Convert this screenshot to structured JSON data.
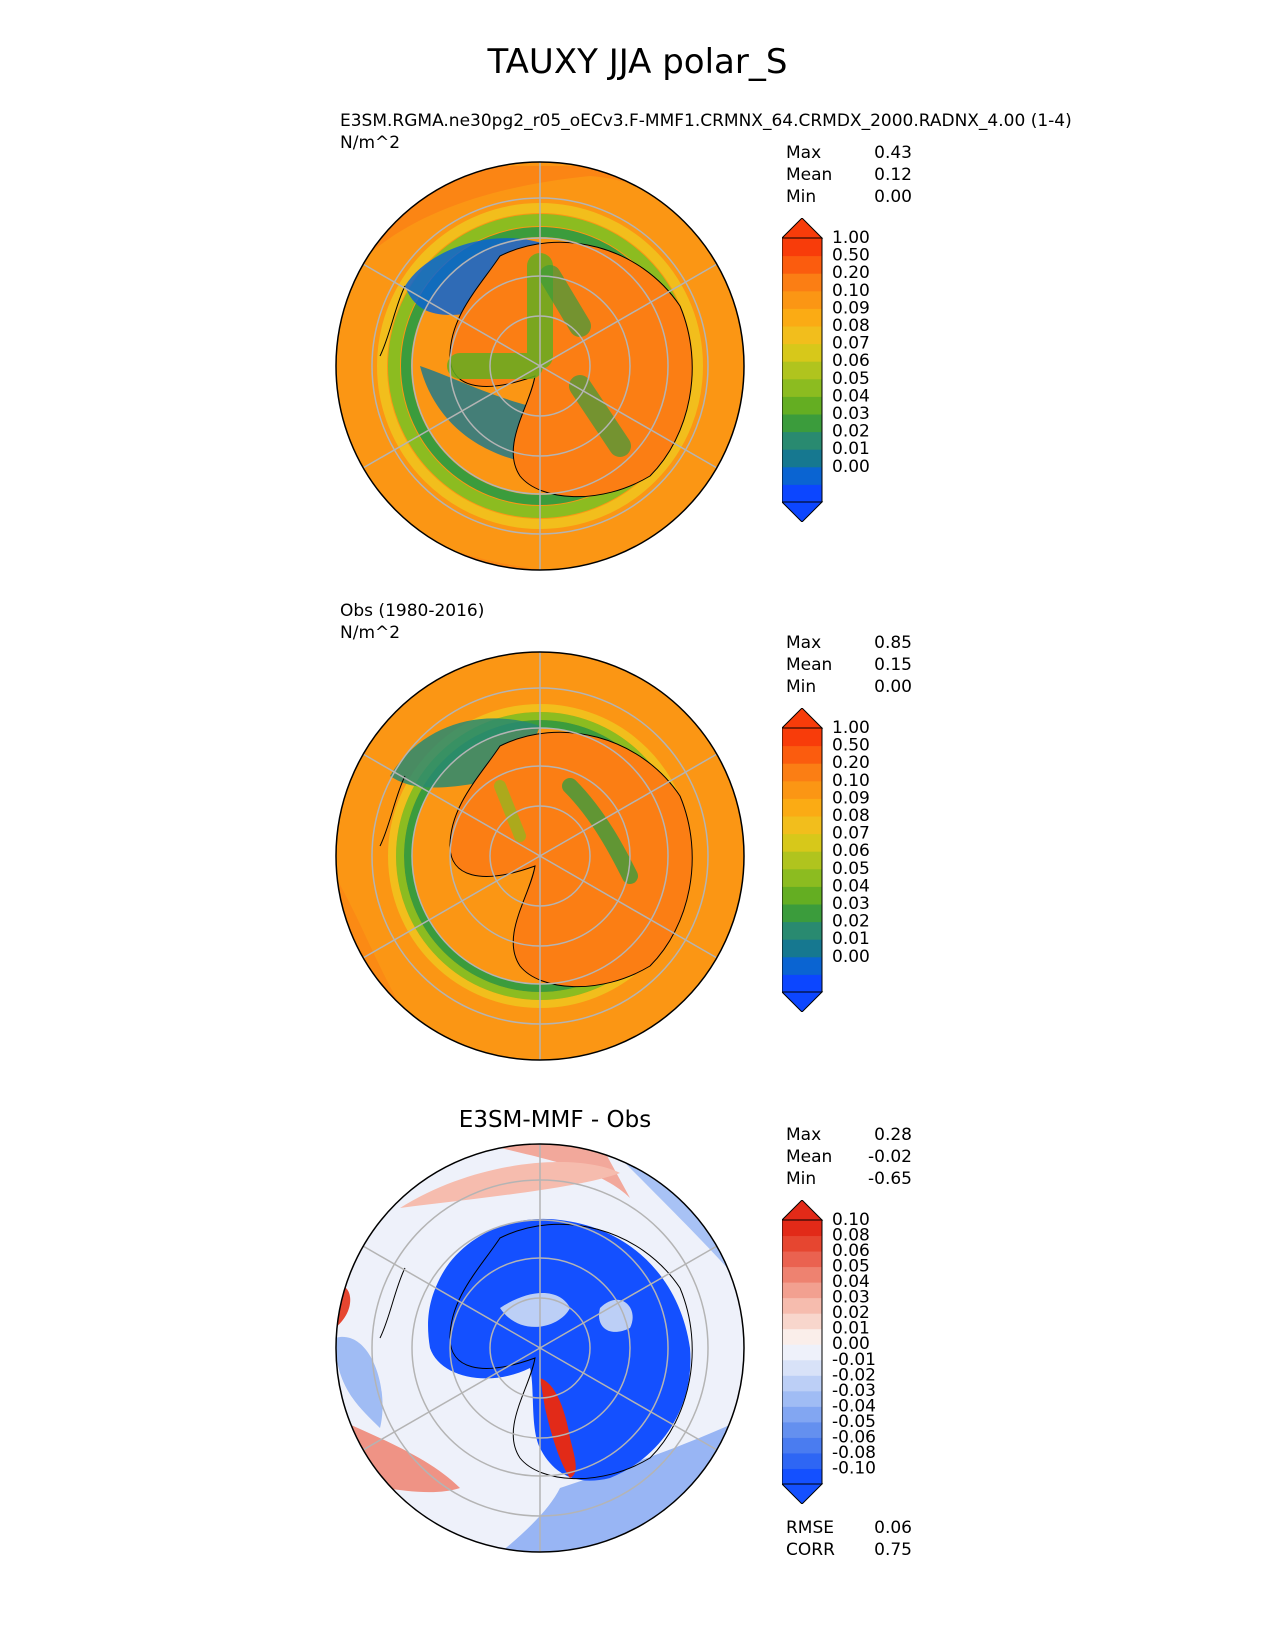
{
  "figure_title": "TAUXY JJA polar_S",
  "colors": {
    "seq": [
      "#0c46ff",
      "#0a64d2",
      "#167890",
      "#298a70",
      "#3b9c3c",
      "#64ae22",
      "#8cbc20",
      "#b0c41e",
      "#d7c81a",
      "#f2be1c",
      "#fbab14",
      "#fb9614",
      "#fb7e14",
      "#fb5c0e",
      "#f83c0a"
    ],
    "div": [
      "#1450ff",
      "#2e66f4",
      "#4a7cf0",
      "#6490ef",
      "#82a6f2",
      "#a0bcf4",
      "#bccff6",
      "#d8e2f8",
      "#eef1fa",
      "#faeeea",
      "#f8d6cc",
      "#f6bcae",
      "#f2a090",
      "#ee8270",
      "#ea6250",
      "#e64630",
      "#e22a18"
    ],
    "land_outline": "#000000",
    "grid": "#b4b4b4"
  },
  "panels": [
    {
      "id": "test",
      "title_line1": "E3SM.RGMA.ne30pg2_r05_oECv3.F-MMF1.CRMNX_64.CRMDX_2000.RADNX_4.00 (1-4)",
      "units": "N/m^2",
      "stats": [
        {
          "label": "Max",
          "value": "0.43"
        },
        {
          "label": "Mean",
          "value": "0.12"
        },
        {
          "label": "Min",
          "value": "0.00"
        }
      ],
      "colorbar_ticks": [
        "1.00",
        "0.50",
        "0.20",
        "0.10",
        "0.09",
        "0.08",
        "0.07",
        "0.06",
        "0.05",
        "0.04",
        "0.03",
        "0.02",
        "0.01",
        "0.00"
      ]
    },
    {
      "id": "ref",
      "title_line1": "Obs (1980-2016)",
      "units": "N/m^2",
      "stats": [
        {
          "label": "Max",
          "value": "0.85"
        },
        {
          "label": "Mean",
          "value": "0.15"
        },
        {
          "label": "Min",
          "value": "0.00"
        }
      ],
      "colorbar_ticks": [
        "1.00",
        "0.50",
        "0.20",
        "0.10",
        "0.09",
        "0.08",
        "0.07",
        "0.06",
        "0.05",
        "0.04",
        "0.03",
        "0.02",
        "0.01",
        "0.00"
      ]
    },
    {
      "id": "diff",
      "title": "E3SM-MMF - Obs",
      "stats": [
        {
          "label": "Max",
          "value": "0.28"
        },
        {
          "label": "Mean",
          "value": "-0.02"
        },
        {
          "label": "Min",
          "value": "-0.65"
        }
      ],
      "colorbar_ticks": [
        "0.10",
        "0.08",
        "0.06",
        "0.05",
        "0.04",
        "0.03",
        "0.02",
        "0.01",
        "0.00",
        "-0.01",
        "-0.02",
        "-0.03",
        "-0.04",
        "-0.05",
        "-0.06",
        "-0.08",
        "-0.10"
      ],
      "metrics": [
        {
          "label": "RMSE",
          "value": "0.06"
        },
        {
          "label": "CORR",
          "value": "0.75"
        }
      ]
    }
  ],
  "chart_data": [
    {
      "type": "heatmap",
      "projection": "south polar stereographic",
      "title": "E3SM.RGMA.ne30pg2_r05_oECv3.F-MMF1.CRMNX_64.CRMDX_2000.RADNX_4.00 (1-4)",
      "units": "N/m^2",
      "levels": [
        0.0,
        0.01,
        0.02,
        0.03,
        0.04,
        0.05,
        0.06,
        0.07,
        0.08,
        0.09,
        0.1,
        0.2,
        0.5,
        1.0
      ],
      "colorbar": "sequential, extended both ends",
      "max": 0.43,
      "mean": 0.12,
      "min": 0.0
    },
    {
      "type": "heatmap",
      "projection": "south polar stereographic",
      "title": "Obs (1980-2016)",
      "units": "N/m^2",
      "levels": [
        0.0,
        0.01,
        0.02,
        0.03,
        0.04,
        0.05,
        0.06,
        0.07,
        0.08,
        0.09,
        0.1,
        0.2,
        0.5,
        1.0
      ],
      "colorbar": "sequential, extended both ends",
      "max": 0.85,
      "mean": 0.15,
      "min": 0.0
    },
    {
      "type": "heatmap",
      "projection": "south polar stereographic",
      "title": "E3SM-MMF - Obs",
      "levels": [
        -0.1,
        -0.08,
        -0.06,
        -0.05,
        -0.04,
        -0.03,
        -0.02,
        -0.01,
        0.0,
        0.01,
        0.02,
        0.03,
        0.04,
        0.05,
        0.06,
        0.08,
        0.1
      ],
      "colorbar": "diverging blue-white-red, extended both ends",
      "max": 0.28,
      "mean": -0.02,
      "min": -0.65,
      "rmse": 0.06,
      "corr": 0.75
    }
  ]
}
